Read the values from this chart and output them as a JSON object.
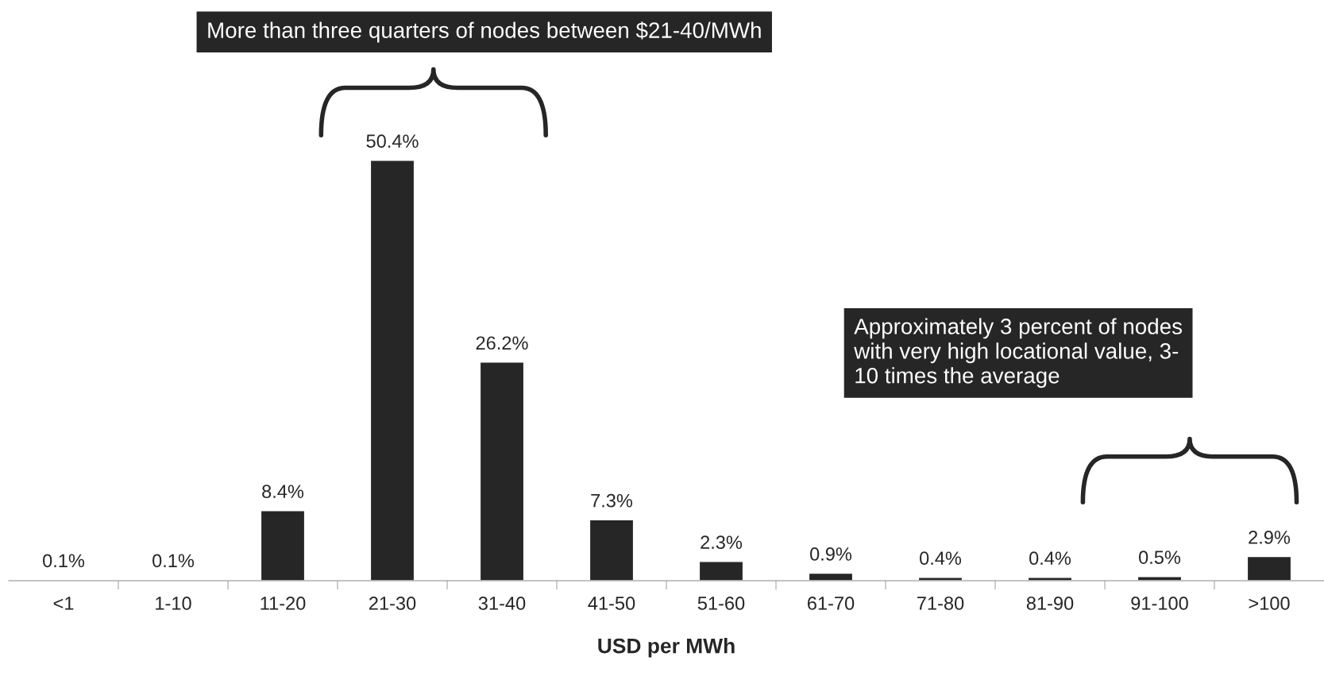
{
  "chart_data": {
    "type": "bar",
    "xlabel": "USD per MWh",
    "categories": [
      "<1",
      "1-10",
      "11-20",
      "21-30",
      "31-40",
      "41-50",
      "51-60",
      "61-70",
      "71-80",
      "81-90",
      "91-100",
      ">100"
    ],
    "values": [
      0.1,
      0.1,
      8.4,
      50.4,
      26.2,
      7.3,
      2.3,
      0.9,
      0.4,
      0.4,
      0.5,
      2.9
    ],
    "value_labels": [
      "0.1%",
      "0.1%",
      "8.4%",
      "50.4%",
      "26.2%",
      "7.3%",
      "2.3%",
      "0.9%",
      "0.4%",
      "0.4%",
      "0.5%",
      "2.9%"
    ],
    "color": "#262626",
    "annotations": [
      "More than three quarters of nodes between $21-40/MWh",
      "Approximately 3 percent of nodes\nwith very high locational value, 3-\n10 times the average"
    ],
    "grid": false,
    "legend": false
  }
}
